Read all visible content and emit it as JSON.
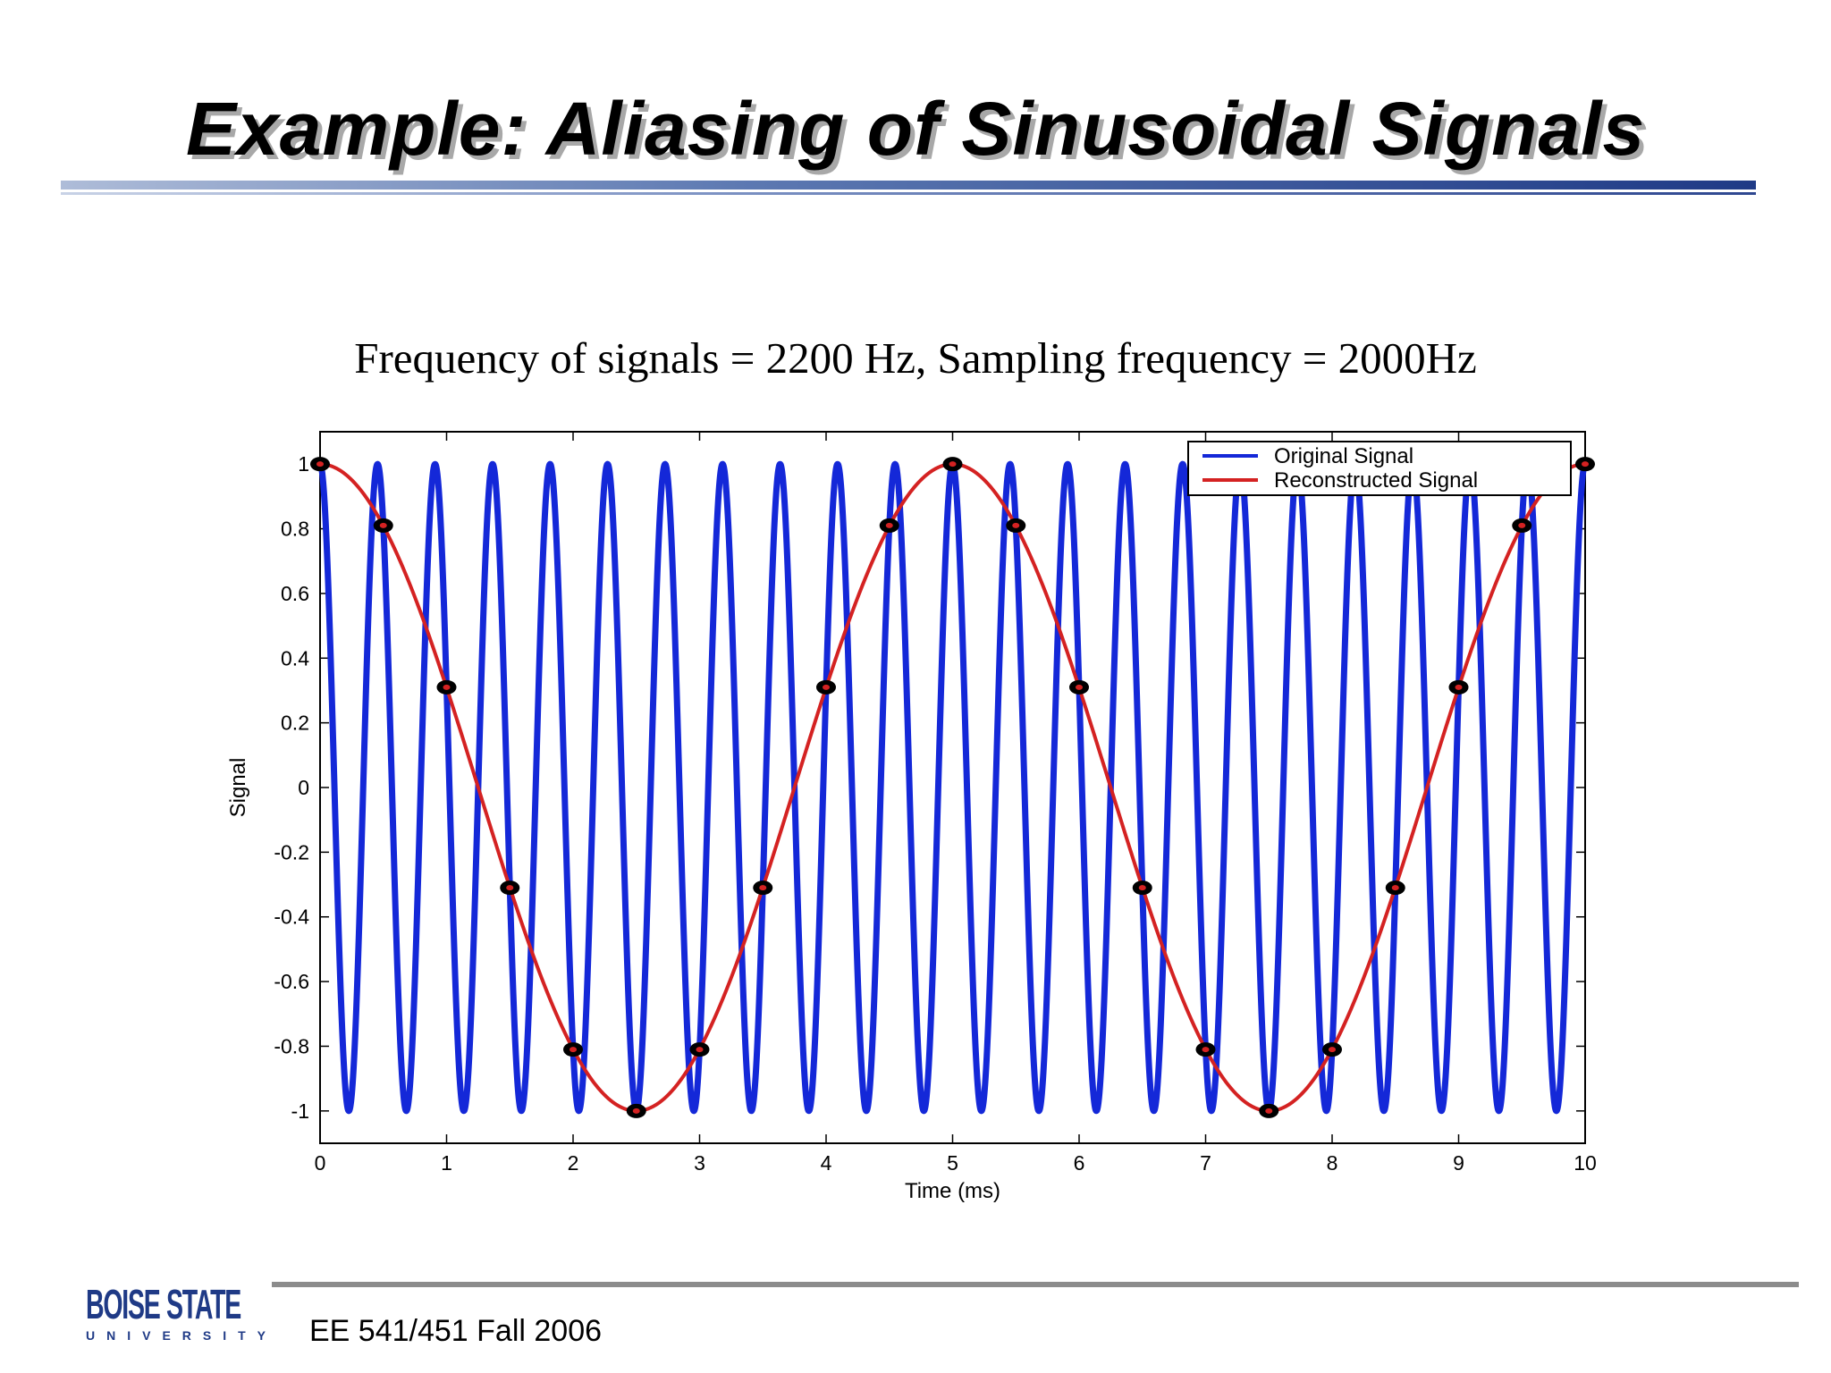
{
  "slide": {
    "title": "Example: Aliasing of Sinusoidal Signals",
    "subtitle": "Frequency of signals = 2200 Hz, Sampling frequency = 2000Hz",
    "footer": "EE 541/451 Fall 2006",
    "logo_left": "BOISE",
    "logo_right": "STATE",
    "logo_bottom": "UNIVERSITY",
    "accent_color": "#1f3a86"
  },
  "chart_data": {
    "type": "line",
    "title": "",
    "xlabel": "Time (ms)",
    "ylabel": "Signal",
    "xlim": [
      0,
      10
    ],
    "ylim": [
      -1.1,
      1.1
    ],
    "xticks": [
      "0",
      "1",
      "2",
      "3",
      "4",
      "5",
      "6",
      "7",
      "8",
      "9",
      "10"
    ],
    "yticks": [
      "1",
      "0.8",
      "0.6",
      "0.4",
      "0.2",
      "0",
      "-0.2",
      "-0.4",
      "-0.6",
      "-0.8",
      "-1"
    ],
    "legend_position": "top-right",
    "series": [
      {
        "name": "Original Signal",
        "color": "#1428d8",
        "function": "cos",
        "frequency_hz": 2200
      },
      {
        "name": "Reconstructed Signal",
        "color": "#d42222",
        "function": "cos",
        "frequency_hz": 200
      }
    ],
    "samples": {
      "marker_color": "#000000",
      "t_ms": [
        0,
        0.5,
        1,
        1.5,
        2,
        2.5,
        3,
        3.5,
        4,
        4.5,
        5,
        5.5,
        6,
        6.5,
        7,
        7.5,
        8,
        8.5,
        9,
        9.5,
        10
      ],
      "values": [
        1,
        0.81,
        0.31,
        -0.31,
        -0.81,
        -1,
        -0.81,
        -0.31,
        0.31,
        0.81,
        1,
        0.81,
        0.31,
        -0.31,
        -0.81,
        -1,
        -0.81,
        -0.31,
        0.31,
        0.81,
        1
      ]
    }
  }
}
